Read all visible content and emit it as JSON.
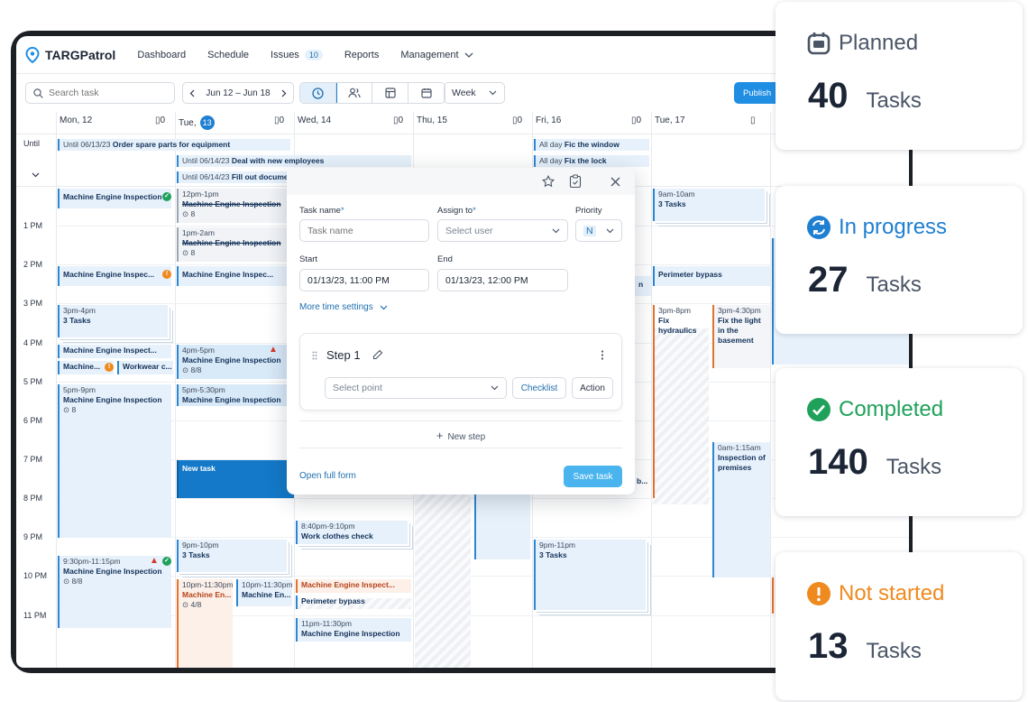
{
  "app": {
    "name": "TARGPatrol"
  },
  "nav": {
    "dashboard": "Dashboard",
    "schedule": "Schedule",
    "issues": "Issues",
    "issues_count": "10",
    "reports": "Reports",
    "management": "Management"
  },
  "toolbar": {
    "search_placeholder": "Search task",
    "date_range": "Jun 12 – Jun 18",
    "view": "Week",
    "publish": "Publish"
  },
  "days": [
    {
      "label": "Mon, 12",
      "count": "0"
    },
    {
      "label": "Tue,",
      "day": "13",
      "count": "0"
    },
    {
      "label": "Wed, 14",
      "count": "0"
    },
    {
      "label": "Thu, 15",
      "count": "0"
    },
    {
      "label": "Fri, 16",
      "count": "0"
    },
    {
      "label": "Tue, 17",
      "count": ""
    }
  ],
  "until_label": "Until",
  "hours": [
    "1 PM",
    "2 PM",
    "3 PM",
    "4 PM",
    "5 PM",
    "6 PM",
    "7 PM",
    "8 PM",
    "9 PM",
    "10 PM",
    "11 PM"
  ],
  "events": {
    "u1": {
      "pre": "Until 06/13/23",
      "title": "Order spare parts for equipment"
    },
    "u2": {
      "pre": "Until 06/14/23",
      "title": "Deal with new employees"
    },
    "u3": {
      "pre": "Until 06/14/23",
      "title": "Fill out docume"
    },
    "f1": {
      "pre": "All day",
      "title": "Fic the window"
    },
    "f2": {
      "pre": "All day",
      "title": "Fix the lock"
    },
    "m1": {
      "title": "Machine Engine Inspection"
    },
    "m2": {
      "title": "Machine Engine Inspec..."
    },
    "m3": {
      "time": "3pm-4pm",
      "title": "3 Tasks"
    },
    "m4": {
      "title": "Machine Engine Inspect..."
    },
    "m5a": {
      "title": "Machine..."
    },
    "m5b": {
      "title": "Workwear c..."
    },
    "m6": {
      "time": "5pm-9pm",
      "title": "Machine Engine Inspection",
      "sub": "8"
    },
    "m7": {
      "time": "9:30pm-11:15pm",
      "title": "Machine Engine Inspection",
      "sub": "8/8"
    },
    "t1": {
      "time": "12pm-1pm",
      "title": "Machine Engine Inspection",
      "sub": "8"
    },
    "t2": {
      "time": "1pm-2am",
      "title": "Machine Engine Inspection",
      "sub": "8",
      "edit": "Edite"
    },
    "t3": {
      "title": "Machine Engine Inspec..."
    },
    "t4": {
      "time": "4pm-5pm",
      "title": "Machine Engine Inspection",
      "sub": "8/8",
      "edit": "Edite"
    },
    "t5": {
      "time": "5pm-5:30pm",
      "title": "Machine Engine Inspection"
    },
    "t6": {
      "title": "New task"
    },
    "t7": {
      "time": "9pm-10pm",
      "title": "3 Tasks"
    },
    "t8": {
      "time": "10pm-11:30pm",
      "title": "Machine En...",
      "sub": "4/8"
    },
    "t9": {
      "time": "10pm-11:30pm",
      "title": "Machine En..."
    },
    "w1": {
      "time": "8:40pm-9:10pm",
      "title": "Work clothes check"
    },
    "w2": {
      "title": "Machine Engine Inspect..."
    },
    "w3": {
      "title": "Perimeter bypass"
    },
    "w4": {
      "time": "11pm-11:30pm",
      "title": "Machine Engine Inspection"
    },
    "fr1": {
      "time": "9pm-11pm",
      "title": "3 Tasks"
    },
    "s1": {
      "time": "9am-10am",
      "title": "3 Tasks"
    },
    "s2": {
      "title": "Perimeter bypass"
    },
    "s3": {
      "time": "3pm-8pm",
      "title": "Fix",
      "title2": "hydraulics"
    },
    "s4": {
      "time": "3pm-4:30pm",
      "title": "Fix the light",
      "title2": "in the",
      "title3": "basement"
    },
    "s5": {
      "time": "0am-1:15am",
      "title": "Inspection of",
      "title2": "premises"
    },
    "r1": {
      "title": "n"
    },
    "r2": {
      "title": "b..."
    }
  },
  "modal": {
    "task_name_label": "Task name",
    "task_name_placeholder": "Task name",
    "assign_label": "Assign to",
    "assign_placeholder": "Select user",
    "priority_label": "Priority",
    "priority_value": "N",
    "start_label": "Start",
    "start_value": "01/13/23, 11:00 PM",
    "end_label": "End",
    "end_value": "01/13/23, 12:00 PM",
    "more_time": "More time settings",
    "step_title": "Step 1",
    "select_point": "Select point",
    "checklist": "Checklist",
    "action": "Action",
    "new_step": "New step",
    "open_full": "Open full form",
    "save": "Save task"
  },
  "stats": [
    {
      "label": "Planned",
      "value": "40",
      "unit": "Tasks",
      "color": "#4a5566"
    },
    {
      "label": "In progress",
      "value": "27",
      "unit": "Tasks",
      "color": "#1f7fd1"
    },
    {
      "label": "Completed",
      "value": "140",
      "unit": "Tasks",
      "color": "#20a15b"
    },
    {
      "label": "Not started",
      "value": "13",
      "unit": "Tasks",
      "color": "#ef8a1f"
    }
  ]
}
